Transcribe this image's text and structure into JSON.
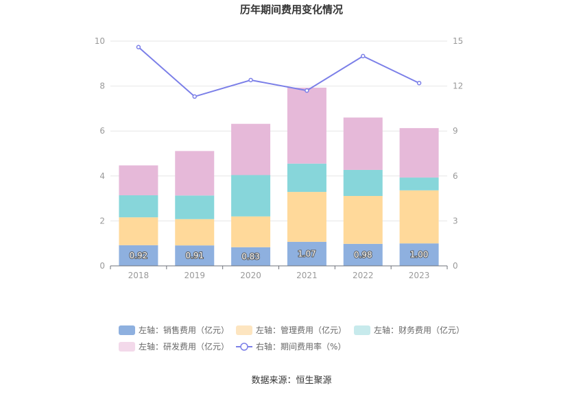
{
  "chart_data": {
    "type": "bar",
    "title": "历年期间费用变化情况",
    "categories": [
      "2018",
      "2019",
      "2020",
      "2021",
      "2022",
      "2023"
    ],
    "left_axis": {
      "ylim": [
        0,
        10
      ],
      "ticks": [
        "0",
        "2",
        "4",
        "6",
        "8",
        "10"
      ]
    },
    "right_axis": {
      "ylim": [
        0,
        15
      ],
      "ticks": [
        "0",
        "3",
        "6",
        "9",
        "12",
        "15"
      ]
    },
    "series": [
      {
        "name": "左轴：销售费用（亿元）",
        "type": "bar",
        "stack": true,
        "axis": "left",
        "color": "#8eb0df",
        "values": [
          0.92,
          0.91,
          0.83,
          1.07,
          0.98,
          1.0
        ],
        "labels": [
          "0.92",
          "0.91",
          "0.83",
          "1.07",
          "0.98",
          "1.00"
        ]
      },
      {
        "name": "左轴：管理费用（亿元）",
        "type": "bar",
        "stack": true,
        "axis": "left",
        "color": "#ffd99a",
        "values": [
          1.24,
          1.17,
          1.37,
          2.22,
          2.13,
          2.36
        ]
      },
      {
        "name": "左轴：财务费用（亿元）",
        "type": "bar",
        "stack": true,
        "axis": "left",
        "color": "#87d6da",
        "values": [
          0.98,
          1.05,
          1.84,
          1.26,
          1.16,
          0.57
        ]
      },
      {
        "name": "左轴：研发费用（亿元）",
        "type": "bar",
        "stack": true,
        "axis": "left",
        "color": "#e6b9d9",
        "values": [
          1.33,
          1.98,
          2.28,
          3.38,
          2.33,
          2.2
        ]
      },
      {
        "name": "右轴：期间费用率（%）",
        "type": "line",
        "axis": "right",
        "color": "#7b7fe8",
        "values": [
          14.6,
          11.3,
          12.4,
          11.7,
          14.0,
          12.2
        ]
      }
    ],
    "legend_position": "bottom",
    "grid": true
  },
  "source_text": "数据来源：恒生聚源"
}
